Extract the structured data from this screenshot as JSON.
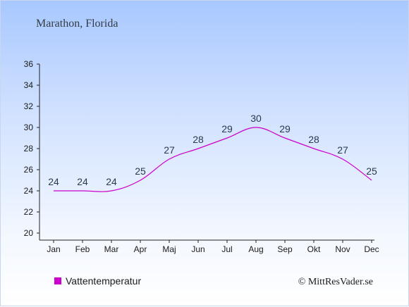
{
  "chart_data": {
    "type": "line",
    "title": "Marathon, Florida",
    "categories": [
      "Jan",
      "Feb",
      "Mar",
      "Apr",
      "Maj",
      "Jun",
      "Jul",
      "Aug",
      "Sep",
      "Okt",
      "Nov",
      "Dec"
    ],
    "series": [
      {
        "name": "Vattentemperatur",
        "values": [
          24,
          24,
          24,
          25,
          27,
          28,
          29,
          30,
          29,
          28,
          27,
          25
        ],
        "color": "#cc00cc"
      }
    ],
    "ylim": [
      20,
      36
    ],
    "yticks": [
      20,
      22,
      24,
      26,
      28,
      30,
      32,
      34,
      36
    ],
    "grid": false,
    "legend": "bottom-left"
  },
  "copyright": "© MittResVader.se"
}
